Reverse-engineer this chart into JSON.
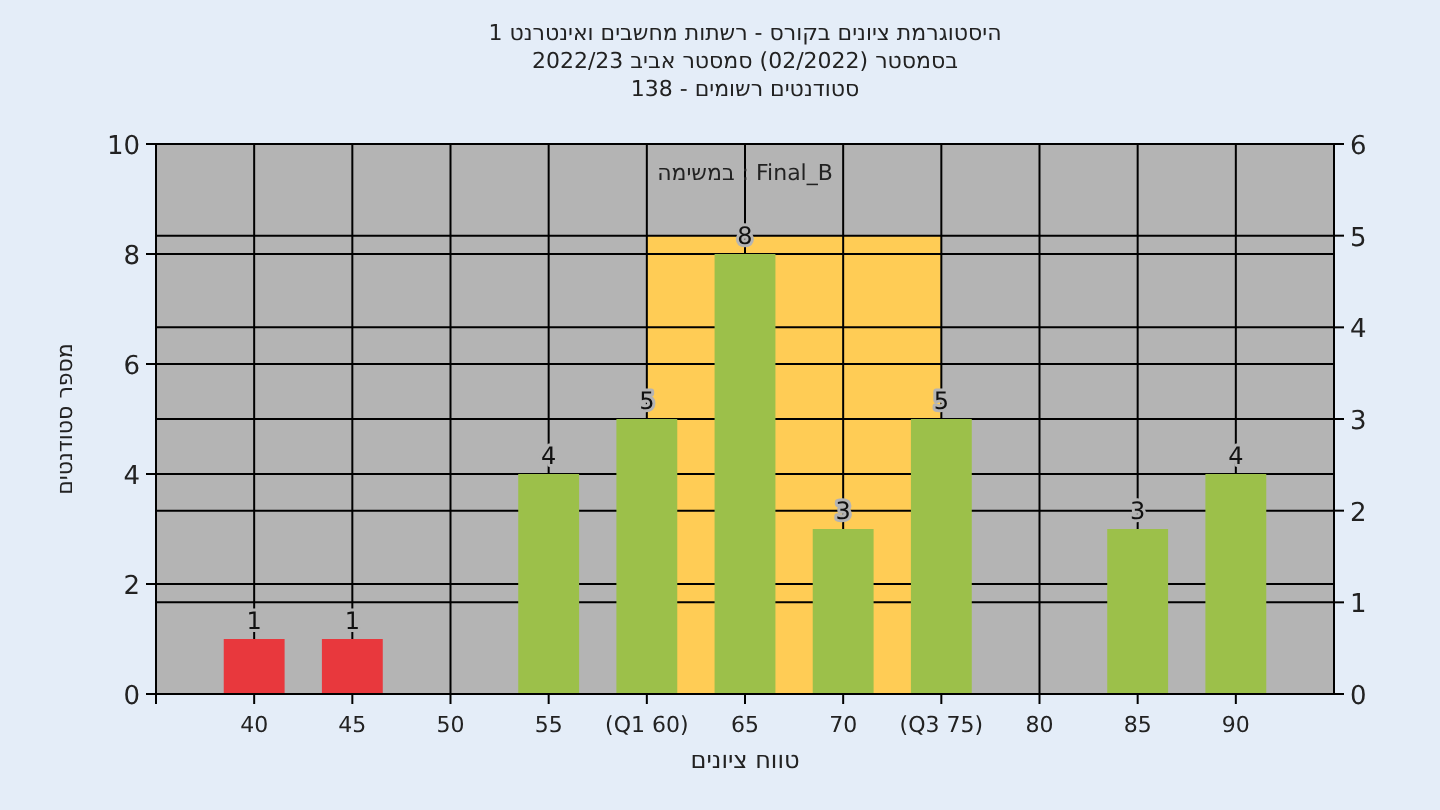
{
  "chart_data": {
    "type": "bar",
    "title": "היסטוגרמת ציונים בקורס - רשתות מחשבים ואינטרנט 1",
    "subtitle": "בסמסטר  (02/2022)  סמסטר אביב 2022/23",
    "annotations": [
      "סטודנטים רשומים - 138",
      "במשימה : Final_B"
    ],
    "xlabel": "טווח ציונים",
    "ylabel": "מספר סטודנטים",
    "categories": [
      "40",
      "45",
      "50",
      "55",
      "(Q1 60)",
      "65",
      "70",
      "(Q3 75)",
      "80",
      "85",
      "90"
    ],
    "series": [
      {
        "type": "area",
        "axis": "y2",
        "color": "#ffcc55",
        "values": [
          null,
          null,
          null,
          null,
          5,
          5,
          5,
          5,
          null,
          null,
          null
        ]
      },
      {
        "colors": [
          "#e8383d",
          "#e8383d",
          "#9cc04a",
          "#9cc04a",
          "#9cc04a",
          "#9cc04a",
          "#9cc04a",
          "#9cc04a",
          "#9cc04a",
          "#9cc04a",
          "#9cc04a"
        ],
        "values": [
          1,
          1,
          0,
          4,
          5,
          8,
          3,
          5,
          0,
          3,
          4
        ],
        "value_labels": [
          "1",
          "1",
          null,
          "4",
          "5",
          "8",
          "3",
          "5",
          null,
          "3",
          "4"
        ]
      }
    ],
    "ylim": [
      0,
      10
    ],
    "yticks": [
      0,
      2,
      4,
      6,
      8,
      10
    ],
    "y2lim": [
      0,
      6
    ],
    "y2ticks": [
      0,
      1,
      2,
      3,
      4,
      5,
      6
    ],
    "grid": true
  }
}
